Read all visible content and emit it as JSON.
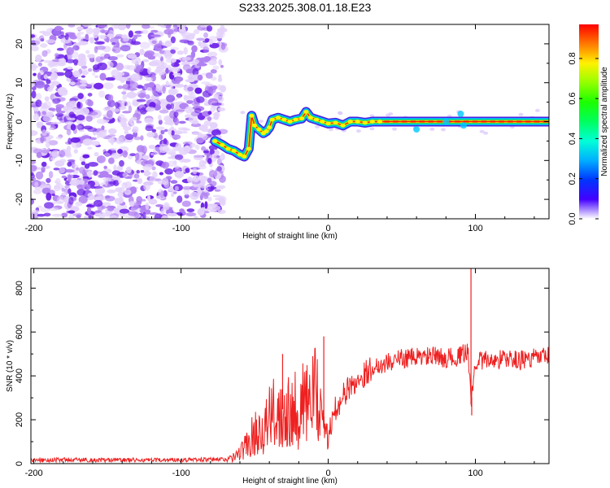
{
  "title": "S233.2025.308.01.18.E23",
  "chart_data": [
    {
      "type": "heatmap",
      "name": "spectrogram",
      "xlabel": "Height of straight line (km)",
      "ylabel": "Frequency (Hz)",
      "xlim": [
        -202,
        150
      ],
      "ylim": [
        -25,
        25
      ],
      "xticks": [
        -200,
        -100,
        0,
        100
      ],
      "yticks": [
        -20,
        -10,
        0,
        10,
        20
      ],
      "track_points": [
        [
          -77,
          -5
        ],
        [
          -72,
          -6
        ],
        [
          -68,
          -7
        ],
        [
          -64,
          -7.5
        ],
        [
          -60,
          -8.5
        ],
        [
          -57,
          -9
        ],
        [
          -54,
          -7
        ],
        [
          -52,
          1.5
        ],
        [
          -50,
          -1
        ],
        [
          -47,
          -2
        ],
        [
          -44,
          -3
        ],
        [
          -42,
          -2.5
        ],
        [
          -40,
          -1.5
        ],
        [
          -38,
          0.5
        ],
        [
          -34,
          1
        ],
        [
          -30,
          0.5
        ],
        [
          -26,
          0
        ],
        [
          -22,
          0.5
        ],
        [
          -18,
          0.8
        ],
        [
          -15,
          2.5
        ],
        [
          -12,
          1
        ],
        [
          -8,
          0.5
        ],
        [
          -4,
          0
        ],
        [
          0,
          -0.5
        ],
        [
          5,
          -0.3
        ],
        [
          10,
          -1
        ],
        [
          15,
          0
        ],
        [
          20,
          0
        ],
        [
          25,
          -0.3
        ],
        [
          30,
          0
        ],
        [
          35,
          0
        ],
        [
          150,
          0
        ]
      ],
      "colorbar": {
        "label": "Normalized spectral amplitude",
        "range": [
          0,
          0.97
        ],
        "ticks": [
          0.0,
          0.2,
          0.4,
          0.6,
          0.8
        ]
      }
    },
    {
      "type": "line",
      "name": "snr",
      "xlabel": "Height of straight line (km)",
      "ylabel": "SNR (10 * v/v)",
      "xlim": [
        -202,
        150
      ],
      "ylim": [
        0,
        890
      ],
      "xticks": [
        -200,
        -100,
        0,
        100
      ],
      "yticks": [
        0,
        200,
        400,
        600,
        800
      ],
      "color": "#ee2020",
      "series": [
        {
          "name": "SNR",
          "x": [
            -200,
            -180,
            -160,
            -140,
            -120,
            -100,
            -80,
            -70,
            -65,
            -60,
            -55,
            -50,
            -45,
            -40,
            -35,
            -30,
            -25,
            -20,
            -15,
            -10,
            -5,
            -3,
            -1,
            0,
            5,
            10,
            15,
            20,
            25,
            30,
            40,
            50,
            60,
            70,
            80,
            90,
            95,
            97,
            100,
            110,
            120,
            130,
            140,
            150
          ],
          "values": [
            15,
            18,
            16,
            17,
            15,
            18,
            18,
            20,
            25,
            50,
            90,
            140,
            160,
            200,
            240,
            250,
            270,
            250,
            280,
            300,
            320,
            160,
            130,
            120,
            250,
            310,
            350,
            380,
            410,
            440,
            460,
            480,
            485,
            490,
            480,
            490,
            520,
            270,
            470,
            470,
            480,
            470,
            480,
            490
          ]
        }
      ],
      "spikes": [
        {
          "x": -31,
          "y": 500
        },
        {
          "x": -3,
          "y": 580
        },
        {
          "x": 97,
          "y": 890
        },
        {
          "x": 97.5,
          "y": 220
        }
      ]
    }
  ]
}
